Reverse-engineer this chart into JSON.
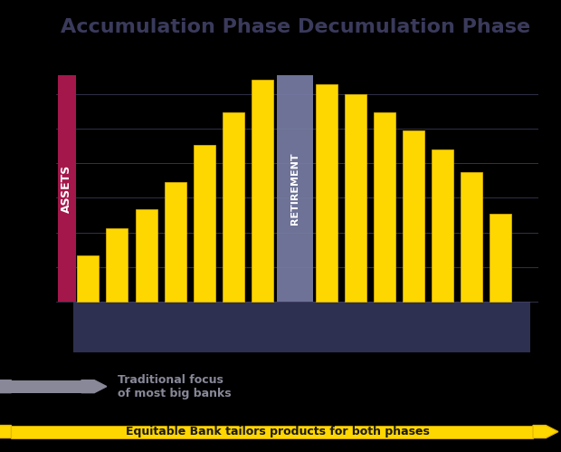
{
  "title_left": "Accumulation Phase",
  "title_right": "Decumulation Phase",
  "bar_color": "#FFD700",
  "bar_edge_color": "#E6B800",
  "background_color": "#000000",
  "ylabel_bg_color": "#A3174A",
  "retirement_color": "#7A7FA8",
  "bottom_bar_color": "#2D3050",
  "accumulation_values": [
    2,
    3.2,
    4.0,
    5.2,
    6.8,
    8.2,
    9.6
  ],
  "decumulation_values": [
    9.4,
    9.0,
    8.2,
    7.4,
    6.6,
    5.6,
    3.8
  ],
  "legend_gray_text": "Traditional focus\nof most big banks",
  "legend_yellow_text": "Equitable Bank tailors products for both phases",
  "title_color": "#3A3A5C",
  "title_fontsize": 16,
  "retirement_label": "RETIREMENT",
  "ylabel_text": "ASSETS"
}
